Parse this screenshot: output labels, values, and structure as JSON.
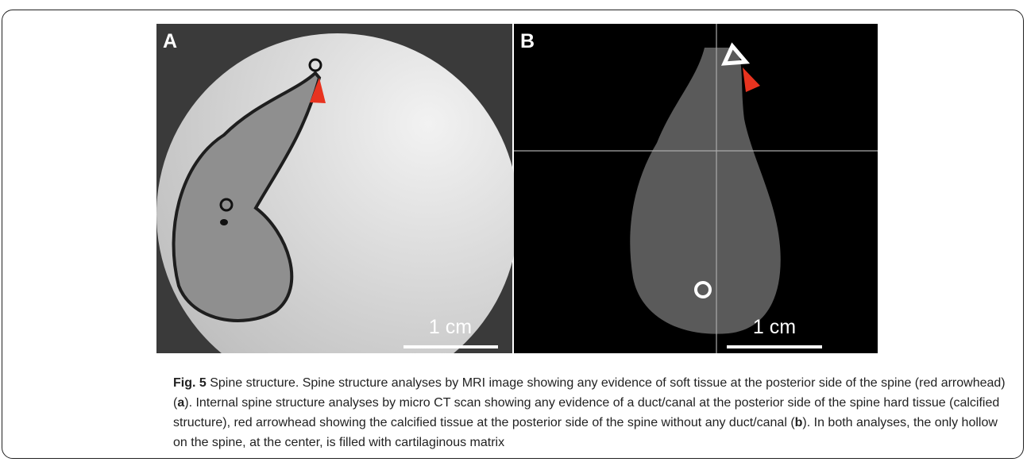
{
  "figure": {
    "panels": [
      {
        "label": "A",
        "scale_bar": "1 cm"
      },
      {
        "label": "B",
        "scale_bar": "1 cm"
      }
    ],
    "caption": {
      "fig_label": "Fig. 5",
      "segments": [
        {
          "text": " Spine structure. Spine structure analyses by MRI image showing any evidence of soft tissue at the posterior side of the spine (red arrowhead) (",
          "bold": false
        },
        {
          "text": "a",
          "bold": true
        },
        {
          "text": "). Internal spine structure analyses by micro CT scan showing any evidence of a duct/canal at the posterior side of the spine hard tissue (calcified structure), red arrowhead showing the calcified tissue at the posterior side of the spine without any duct/canal (",
          "bold": false
        },
        {
          "text": "b",
          "bold": true
        },
        {
          "text": "). In both analyses, the only hollow on the spine, at the center, is filled with cartilaginous matrix",
          "bold": false
        }
      ]
    }
  }
}
